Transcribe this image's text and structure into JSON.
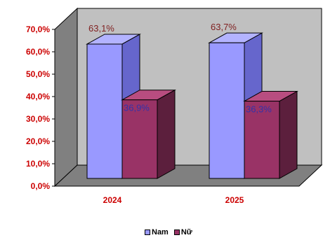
{
  "chart_data": {
    "type": "bar",
    "style": "3d-clustered-column",
    "categories": [
      "2024",
      "2025"
    ],
    "series": [
      {
        "name": "Nam",
        "values": [
          63.1,
          63.7
        ],
        "labels": [
          "63,1%",
          "63,7%"
        ],
        "color": "#9999ff",
        "label_color": "#7f1f1f"
      },
      {
        "name": "Nữ",
        "values": [
          36.9,
          36.3
        ],
        "labels": [
          "36,9%",
          "36,3%"
        ],
        "color": "#993366",
        "label_color": "#3333aa"
      }
    ],
    "ylim": [
      0,
      70
    ],
    "yticks": [
      "0,0%",
      "10,0%",
      "20,0%",
      "30,0%",
      "40,0%",
      "50,0%",
      "60,0%",
      "70,0%"
    ],
    "tick_color": "#cc0000",
    "category_color": "#cc0000",
    "wall_color": "#c0c0c0",
    "floor_color": "#808080",
    "grid": false,
    "legend_position": "bottom"
  }
}
